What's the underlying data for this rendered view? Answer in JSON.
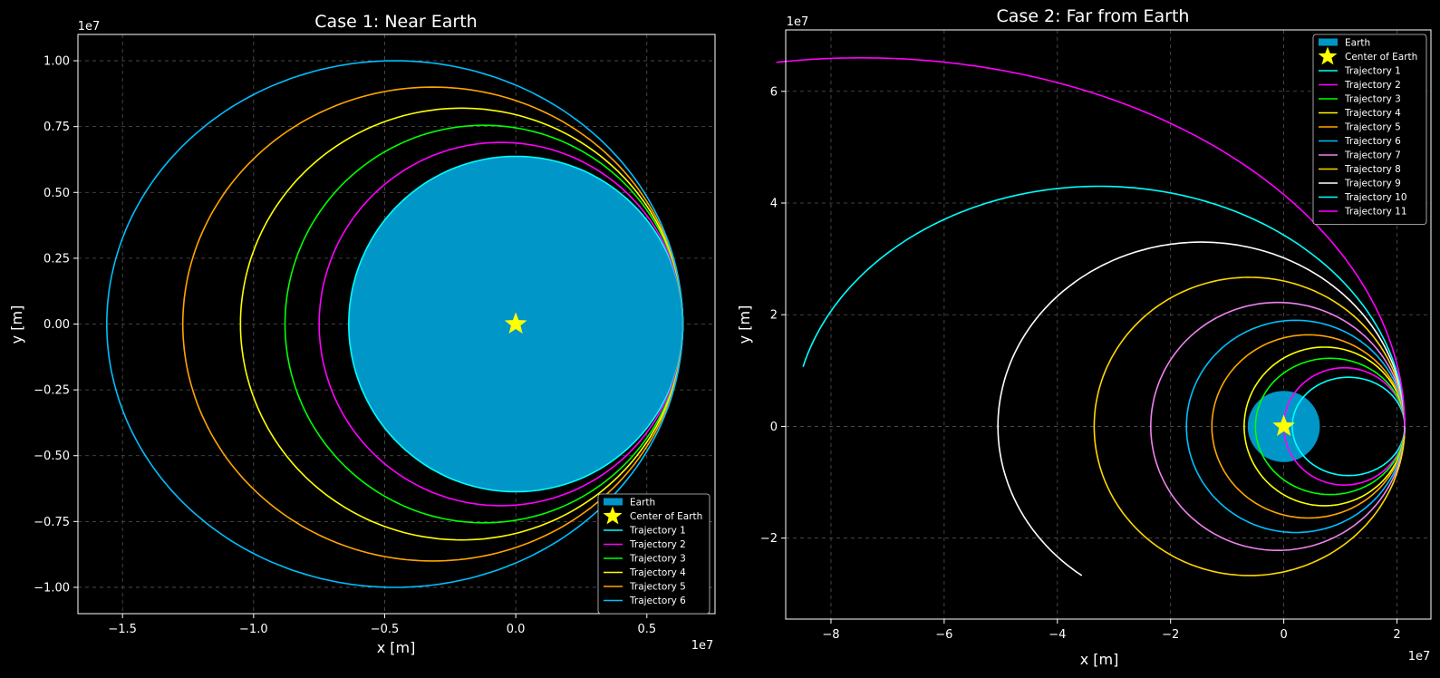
{
  "chart_data": [
    {
      "type": "line",
      "title": "Case 1: Near Earth",
      "xlabel": "x [m]",
      "ylabel": "y [m]",
      "x_multiplier": "1e7",
      "y_multiplier": "1e7",
      "xlim": [
        -1.67,
        0.76
      ],
      "ylim": [
        -1.1,
        1.1
      ],
      "x_ticks": [
        -1.5,
        -1.0,
        -0.5,
        0.0,
        0.5
      ],
      "x_tick_labels": [
        "−1.5",
        "−1.0",
        "−0.5",
        "0.0",
        "0.5"
      ],
      "y_ticks": [
        -1.0,
        -0.75,
        -0.5,
        -0.25,
        0.0,
        0.25,
        0.5,
        0.75,
        1.0
      ],
      "y_tick_labels": [
        "−1.00",
        "−0.75",
        "−0.50",
        "−0.25",
        "0.00",
        "0.25",
        "0.50",
        "0.75",
        "1.00"
      ],
      "grid": true,
      "legend_position": "lower right",
      "earth": {
        "name": "Earth",
        "center": [
          0,
          0
        ],
        "radius": 0.6371,
        "color": "#0096c8"
      },
      "center_marker": {
        "name": "Center of Earth",
        "x": 0,
        "y": 0,
        "color": "#ffff00"
      },
      "series": [
        {
          "name": "Trajectory 1",
          "color": "#00ffff",
          "start_x": 0.6371,
          "min_x": -0.6371,
          "max_abs_y": 0.6371,
          "periapsis_x": 0.6371,
          "apoapsis_x": -0.6371
        },
        {
          "name": "Trajectory 2",
          "color": "#ff00ff",
          "start_x": 0.6371,
          "min_x": -0.75,
          "max_abs_y": 0.69
        },
        {
          "name": "Trajectory 3",
          "color": "#00ff00",
          "start_x": 0.6371,
          "min_x": -0.88,
          "max_abs_y": 0.755
        },
        {
          "name": "Trajectory 4",
          "color": "#ffff00",
          "start_x": 0.6371,
          "min_x": -1.05,
          "max_abs_y": 0.82
        },
        {
          "name": "Trajectory 5",
          "color": "#ffa500",
          "start_x": 0.6371,
          "min_x": -1.27,
          "max_abs_y": 0.9
        },
        {
          "name": "Trajectory 6",
          "color": "#00bfff",
          "start_x": 0.6371,
          "min_x": -1.56,
          "max_abs_y": 1.0
        }
      ]
    },
    {
      "type": "line",
      "title": "Case 2: Far from Earth",
      "xlabel": "x [m]",
      "ylabel": "y [m]",
      "x_multiplier": "1e7",
      "y_multiplier": "1e7",
      "xlim": [
        -8.8,
        2.6
      ],
      "ylim": [
        -3.45,
        7.1
      ],
      "x_ticks": [
        -8,
        -6,
        -4,
        -2,
        0,
        2
      ],
      "x_tick_labels": [
        "−8",
        "−6",
        "−4",
        "−2",
        "0",
        "2"
      ],
      "y_ticks": [
        -2,
        0,
        2,
        4,
        6
      ],
      "y_tick_labels": [
        "−2",
        "0",
        "2",
        "4",
        "6"
      ],
      "grid": true,
      "legend_position": "upper right",
      "earth": {
        "name": "Earth",
        "center": [
          0,
          0
        ],
        "radius": 0.6371,
        "color": "#0096c8"
      },
      "center_marker": {
        "name": "Center of Earth",
        "x": 0,
        "y": 0,
        "color": "#ffff00"
      },
      "series": [
        {
          "name": "Trajectory 1",
          "color": "#00ffff",
          "start_x": 2.1371,
          "min_x": 0.15,
          "max_abs_y": 0.88,
          "closed": true
        },
        {
          "name": "Trajectory 2",
          "color": "#ff00ff",
          "start_x": 2.1371,
          "min_x": 0.0,
          "max_abs_y": 1.05,
          "closed": true
        },
        {
          "name": "Trajectory 3",
          "color": "#00ff00",
          "start_x": 2.1371,
          "min_x": -0.5,
          "max_abs_y": 1.22,
          "closed": true
        },
        {
          "name": "Trajectory 4",
          "color": "#ffff00",
          "start_x": 2.1371,
          "min_x": -0.7,
          "max_abs_y": 1.42,
          "closed": true
        },
        {
          "name": "Trajectory 5",
          "color": "#ffa500",
          "start_x": 2.1371,
          "min_x": -1.27,
          "max_abs_y": 1.64,
          "closed": true
        },
        {
          "name": "Trajectory 6",
          "color": "#00bfff",
          "start_x": 2.1371,
          "min_x": -1.72,
          "max_abs_y": 1.9,
          "closed": true
        },
        {
          "name": "Trajectory 7",
          "color": "#ee82ee",
          "start_x": 2.1371,
          "min_x": -2.35,
          "max_abs_y": 2.22,
          "closed": true
        },
        {
          "name": "Trajectory 8",
          "color": "#ffd700",
          "start_x": 2.1371,
          "min_x": -3.35,
          "max_abs_y": 2.67,
          "end": [
            -3.0,
            -2.95
          ],
          "end_note": "open arc"
        },
        {
          "name": "Trajectory 9",
          "color": "#ffffff",
          "start_x": 2.1371,
          "min_x": -5.05,
          "max_abs_y": 3.3,
          "end": [
            -3.0,
            -2.95
          ]
        },
        {
          "name": "Trajectory 10",
          "color": "#00ffff",
          "start_x": 2.1371,
          "top_y": 4.3,
          "end": [
            -8.25,
            1.62
          ]
        },
        {
          "name": "Trajectory 11",
          "color": "#ff00ff",
          "start_x": 2.1371,
          "end": [
            -7.5,
            6.6
          ]
        }
      ]
    }
  ]
}
